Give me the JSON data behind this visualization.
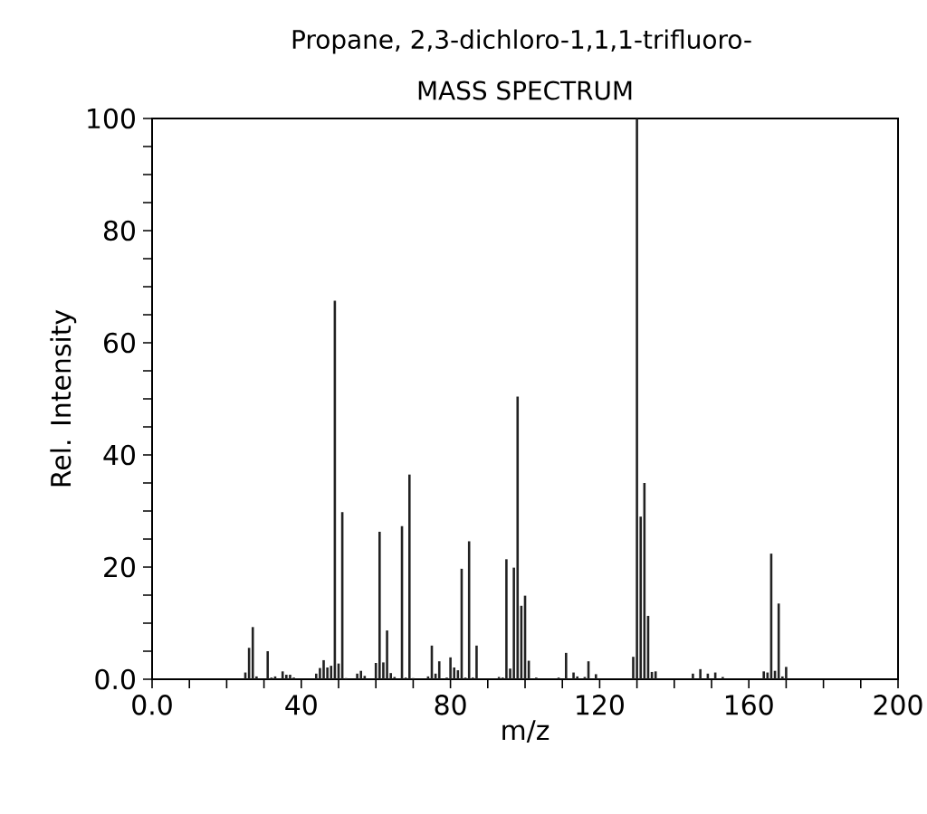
{
  "chart_data": {
    "type": "bar",
    "title": "Propane, 2,3-dichloro-1,1,1-trifluoro-",
    "subtitle": "MASS SPECTRUM",
    "xlabel": "m/z",
    "ylabel": "Rel. Intensity",
    "color": "#222222",
    "x": [
      25,
      26,
      27,
      28,
      31,
      32,
      33,
      35,
      36,
      37,
      38,
      44,
      45,
      46,
      47,
      48,
      49,
      50,
      51,
      52,
      55,
      56,
      57,
      60,
      61,
      62,
      63,
      64,
      65,
      67,
      68,
      69,
      70,
      74,
      75,
      76,
      77,
      79,
      80,
      81,
      82,
      83,
      84,
      85,
      86,
      87,
      93,
      94,
      95,
      96,
      97,
      98,
      99,
      100,
      101,
      103,
      109,
      111,
      113,
      114,
      116,
      117,
      119,
      129,
      130,
      131,
      132,
      133,
      134,
      135,
      145,
      147,
      149,
      151,
      153,
      164,
      165,
      166,
      167,
      168,
      169,
      170
    ],
    "values": [
      1.2,
      5.6,
      9.3,
      0.5,
      5.0,
      0.3,
      0.5,
      1.4,
      0.8,
      0.8,
      0.3,
      1.0,
      2.0,
      3.4,
      2.1,
      2.4,
      67.5,
      2.8,
      29.8,
      0.2,
      1.0,
      1.5,
      0.6,
      2.9,
      26.3,
      3.0,
      8.7,
      1.1,
      0.4,
      27.3,
      0.3,
      36.5,
      0.2,
      0.5,
      6.0,
      1.0,
      3.2,
      0.3,
      3.9,
      2.1,
      1.6,
      19.7,
      0.3,
      24.6,
      0.3,
      6.0,
      0.4,
      0.3,
      21.4,
      1.9,
      19.9,
      50.4,
      13.1,
      14.9,
      3.3,
      0.3,
      0.3,
      4.7,
      1.2,
      0.5,
      0.4,
      3.2,
      0.9,
      4.0,
      100,
      29.0,
      35.0,
      11.3,
      1.3,
      1.4,
      1.0,
      1.8,
      1.0,
      1.2,
      0.4,
      1.4,
      1.2,
      22.4,
      1.5,
      13.5,
      0.5,
      2.2
    ],
    "xlim": [
      0,
      200
    ],
    "xticks": [
      {
        "value": 0,
        "label": "0.0"
      },
      {
        "value": 10,
        "label": null
      },
      {
        "value": 20,
        "label": null
      },
      {
        "value": 30,
        "label": null
      },
      40,
      {
        "value": 50,
        "label": null
      },
      {
        "value": 60,
        "label": null
      },
      {
        "value": 70,
        "label": null
      },
      80,
      {
        "value": 90,
        "label": null
      },
      {
        "value": 100,
        "label": null
      },
      {
        "value": 110,
        "label": null
      },
      120,
      {
        "value": 130,
        "label": null
      },
      {
        "value": 140,
        "label": null
      },
      {
        "value": 150,
        "label": null
      },
      160,
      {
        "value": 170,
        "label": null
      },
      {
        "value": 180,
        "label": null
      },
      {
        "value": 190,
        "label": null
      },
      200
    ],
    "ylim": [
      0,
      100
    ],
    "yticks": [
      {
        "value": 0,
        "label": "0.0"
      },
      {
        "value": 5,
        "label": null
      },
      {
        "value": 10,
        "label": null
      },
      {
        "value": 15,
        "label": null
      },
      20,
      {
        "value": 25,
        "label": null
      },
      {
        "value": 30,
        "label": null
      },
      {
        "value": 35,
        "label": null
      },
      40,
      {
        "value": 45,
        "label": null
      },
      {
        "value": 50,
        "label": null
      },
      {
        "value": 55,
        "label": null
      },
      60,
      {
        "value": 65,
        "label": null
      },
      {
        "value": 70,
        "label": null
      },
      {
        "value": 75,
        "label": null
      },
      80,
      {
        "value": 85,
        "label": null
      },
      {
        "value": 90,
        "label": null
      },
      {
        "value": 95,
        "label": null
      },
      100
    ]
  }
}
